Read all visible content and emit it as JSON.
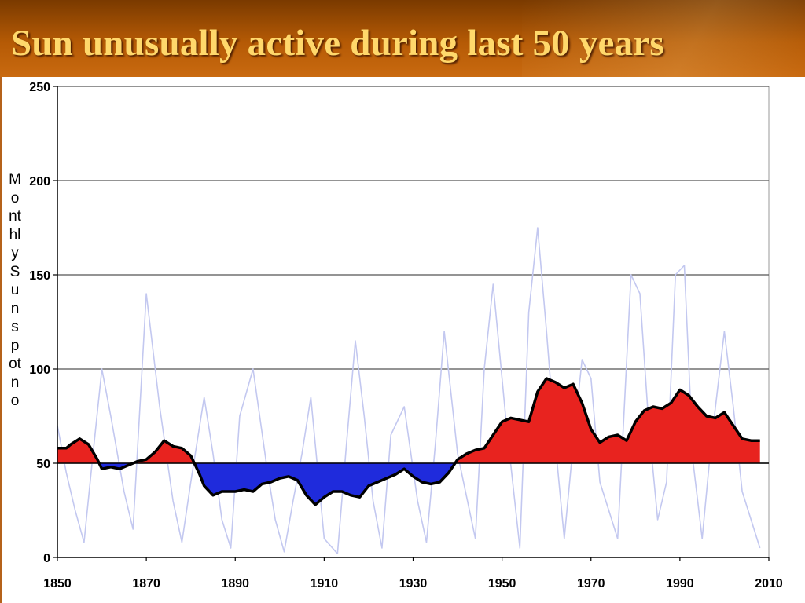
{
  "slide": {
    "title": "Sun unusually active during last 50 years",
    "bar_color": "#b55a05",
    "title_color": "#ffd86b"
  },
  "chart_data": {
    "type": "area",
    "title": "Sun unusually active during last 50 years",
    "xlabel": "",
    "ylabel": "Monthly Sunspotno",
    "xlim": [
      1850,
      2010
    ],
    "ylim": [
      0,
      250
    ],
    "x_ticks": [
      1850,
      1870,
      1890,
      1910,
      1930,
      1950,
      1970,
      1990,
      2010
    ],
    "y_ticks": [
      0,
      50,
      100,
      150,
      200,
      250
    ],
    "grid": true,
    "baseline": 50,
    "colors": {
      "above_baseline": "#e8231f",
      "below_baseline": "#1f2bdc",
      "smoothed_line": "#000000",
      "monthly_trace": "#c3c8f0"
    },
    "series": [
      {
        "style": "smoothed line with area filled relative to 50",
        "x": [
          1850,
          1852,
          1853,
          1855,
          1857,
          1859,
          1860,
          1862,
          1864,
          1866,
          1868,
          1870,
          1872,
          1874,
          1876,
          1878,
          1880,
          1882,
          1883,
          1885,
          1887,
          1890,
          1892,
          1894,
          1896,
          1898,
          1900,
          1902,
          1904,
          1906,
          1908,
          1910,
          1912,
          1914,
          1916,
          1918,
          1920,
          1922,
          1924,
          1926,
          1928,
          1930,
          1932,
          1934,
          1936,
          1938,
          1940,
          1942,
          1944,
          1946,
          1948,
          1950,
          1952,
          1954,
          1956,
          1958,
          1960,
          1962,
          1964,
          1966,
          1968,
          1970,
          1972,
          1974,
          1976,
          1978,
          1980,
          1982,
          1984,
          1986,
          1988,
          1990,
          1992,
          1994,
          1996,
          1998,
          2000,
          2002,
          2004,
          2006,
          2008
        ],
        "y": [
          58,
          58,
          60,
          63,
          60,
          52,
          47,
          48,
          47,
          49,
          51,
          52,
          56,
          62,
          59,
          58,
          54,
          44,
          38,
          33,
          35,
          35,
          36,
          35,
          39,
          40,
          42,
          43,
          41,
          33,
          28,
          32,
          35,
          35,
          33,
          32,
          38,
          40,
          42,
          44,
          47,
          43,
          40,
          39,
          40,
          45,
          52,
          55,
          57,
          58,
          65,
          72,
          74,
          73,
          72,
          88,
          95,
          93,
          90,
          92,
          82,
          68,
          61,
          64,
          65,
          62,
          72,
          78,
          80,
          79,
          82,
          89,
          86,
          80,
          75,
          74,
          77,
          70,
          63,
          62,
          62
        ]
      },
      {
        "style": "monthly values (light trace)",
        "x": [
          1850,
          1852,
          1854,
          1856,
          1858,
          1860,
          1862,
          1865,
          1867,
          1870,
          1873,
          1876,
          1878,
          1880,
          1883,
          1885,
          1887,
          1889,
          1891,
          1894,
          1897,
          1899,
          1901,
          1903,
          1905,
          1907,
          1910,
          1913,
          1915,
          1917,
          1919,
          1921,
          1923,
          1925,
          1928,
          1931,
          1933,
          1935,
          1937,
          1940,
          1944,
          1946,
          1948,
          1951,
          1954,
          1956,
          1958,
          1960,
          1962,
          1964,
          1966,
          1968,
          1970,
          1972,
          1974,
          1976,
          1979,
          1981,
          1983,
          1985,
          1987,
          1989,
          1991,
          1993,
          1995,
          1997,
          2000,
          2002,
          2004,
          2006,
          2008
        ],
        "y": [
          70,
          45,
          25,
          8,
          55,
          100,
          75,
          35,
          15,
          140,
          80,
          30,
          8,
          40,
          85,
          55,
          20,
          5,
          75,
          100,
          50,
          20,
          3,
          30,
          55,
          85,
          10,
          2,
          60,
          115,
          75,
          30,
          5,
          65,
          80,
          30,
          8,
          60,
          120,
          55,
          10,
          100,
          145,
          70,
          5,
          130,
          175,
          120,
          60,
          10,
          60,
          105,
          95,
          40,
          25,
          10,
          150,
          140,
          70,
          20,
          40,
          150,
          155,
          50,
          10,
          60,
          120,
          80,
          35,
          20,
          5
        ]
      }
    ]
  }
}
